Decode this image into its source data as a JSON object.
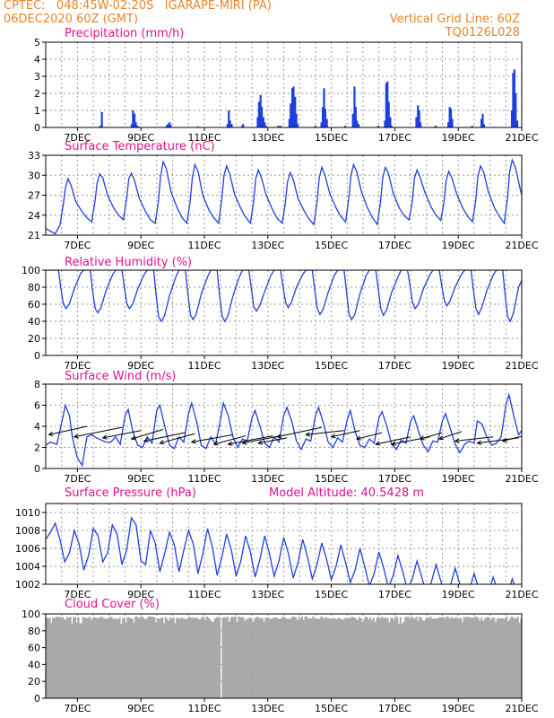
{
  "header": {
    "line1_left": "CPTEC:   048:45W-02:20S   IGARAPE-MIRI (PA)",
    "line1_right": "Vertical Grid Line: 60Z",
    "line2_left": "06DEC2020 60Z (GMT)",
    "line2_right": "TQ0126L028"
  },
  "colors": {
    "series": "#1f3fe0",
    "bars": "#1f3fe0",
    "cloud": "#a9a9a9",
    "title": "#e0118e",
    "header": "#e8852a"
  },
  "x_axis": {
    "unit": "days since 06DEC2020 00Z",
    "range": [
      0,
      15
    ],
    "tick_positions": [
      1,
      3,
      5,
      7,
      9,
      11,
      13,
      15
    ],
    "tick_labels": [
      "7DEC",
      "9DEC",
      "11DEC",
      "13DEC",
      "15DEC",
      "17DEC",
      "19DEC",
      "21DEC"
    ],
    "grid_every": 0.5
  },
  "chart_data": [
    {
      "id": "precip",
      "type": "bar",
      "title": "Precipitation (mm/h)",
      "ylim": [
        0,
        5
      ],
      "yticks": [
        0,
        1,
        2,
        3,
        4,
        5
      ],
      "bars": [
        [
          1.72,
          0.1
        ],
        [
          1.77,
          0.9
        ],
        [
          2.71,
          0.2
        ],
        [
          2.75,
          1.0
        ],
        [
          2.8,
          0.8
        ],
        [
          2.84,
          0.3
        ],
        [
          2.89,
          0.1
        ],
        [
          2.93,
          0.05
        ],
        [
          3.81,
          0.1
        ],
        [
          3.85,
          0.2
        ],
        [
          3.9,
          0.3
        ],
        [
          3.94,
          0.15
        ],
        [
          4.8,
          0.05
        ],
        [
          5.73,
          0.2
        ],
        [
          5.77,
          1.0
        ],
        [
          5.81,
          0.4
        ],
        [
          5.86,
          0.2
        ],
        [
          6.19,
          0.1
        ],
        [
          6.22,
          0.2
        ],
        [
          6.68,
          0.6
        ],
        [
          6.72,
          1.5
        ],
        [
          6.77,
          1.9
        ],
        [
          6.81,
          1.2
        ],
        [
          6.86,
          0.6
        ],
        [
          6.9,
          0.3
        ],
        [
          6.94,
          0.1
        ],
        [
          7.33,
          0.1
        ],
        [
          7.4,
          0.1
        ],
        [
          7.68,
          0.5
        ],
        [
          7.72,
          1.4
        ],
        [
          7.77,
          2.3
        ],
        [
          7.81,
          2.4
        ],
        [
          7.86,
          1.8
        ],
        [
          7.9,
          0.8
        ],
        [
          7.94,
          0.2
        ],
        [
          8.5,
          0.1
        ],
        [
          8.69,
          0.3
        ],
        [
          8.73,
          1.2
        ],
        [
          8.77,
          2.3
        ],
        [
          8.81,
          1.1
        ],
        [
          8.86,
          0.5
        ],
        [
          9.44,
          0.1
        ],
        [
          9.68,
          0.8
        ],
        [
          9.73,
          2.4
        ],
        [
          9.77,
          1.2
        ],
        [
          9.81,
          0.4
        ],
        [
          9.86,
          0.2
        ],
        [
          10.48,
          0.1
        ],
        [
          10.69,
          0.4
        ],
        [
          10.73,
          2.6
        ],
        [
          10.77,
          2.7
        ],
        [
          10.81,
          1.5
        ],
        [
          10.86,
          0.6
        ],
        [
          10.9,
          0.1
        ],
        [
          11.68,
          0.6
        ],
        [
          11.73,
          1.3
        ],
        [
          11.77,
          1.0
        ],
        [
          11.81,
          0.3
        ],
        [
          12.28,
          0.1
        ],
        [
          12.32,
          0.05
        ],
        [
          12.69,
          0.3
        ],
        [
          12.73,
          1.2
        ],
        [
          12.77,
          1.1
        ],
        [
          12.81,
          0.5
        ],
        [
          13.44,
          0.1
        ],
        [
          13.73,
          0.5
        ],
        [
          13.77,
          0.8
        ],
        [
          13.81,
          0.2
        ],
        [
          14.69,
          1.0
        ],
        [
          14.73,
          3.2
        ],
        [
          14.77,
          3.4
        ],
        [
          14.81,
          2.0
        ],
        [
          14.86,
          0.4
        ]
      ]
    },
    {
      "id": "temp",
      "type": "line",
      "title": "Surface Temperature (nC)",
      "ylim": [
        21,
        33
      ],
      "yticks": [
        21,
        24,
        27,
        30,
        33
      ],
      "x": [
        0,
        0.15,
        0.3,
        0.45,
        0.55,
        0.62,
        0.7,
        0.8,
        0.95,
        1.15,
        1.3,
        1.45,
        1.55,
        1.62,
        1.7,
        1.8,
        1.95,
        2.15,
        2.3,
        2.45,
        2.55,
        2.62,
        2.7,
        2.8,
        2.95,
        3.15,
        3.3,
        3.45,
        3.55,
        3.62,
        3.7,
        3.8,
        3.95,
        4.15,
        4.3,
        4.45,
        4.55,
        4.62,
        4.7,
        4.8,
        4.95,
        5.15,
        5.3,
        5.45,
        5.55,
        5.62,
        5.7,
        5.8,
        5.95,
        6.15,
        6.3,
        6.45,
        6.55,
        6.62,
        6.7,
        6.8,
        6.95,
        7.15,
        7.3,
        7.45,
        7.55,
        7.62,
        7.7,
        7.8,
        7.95,
        8.15,
        8.3,
        8.45,
        8.55,
        8.62,
        8.7,
        8.8,
        8.95,
        9.15,
        9.3,
        9.45,
        9.55,
        9.62,
        9.7,
        9.8,
        9.95,
        10.15,
        10.3,
        10.45,
        10.55,
        10.62,
        10.7,
        10.8,
        10.95,
        11.15,
        11.3,
        11.45,
        11.55,
        11.62,
        11.7,
        11.8,
        11.95,
        12.15,
        12.3,
        12.45,
        12.55,
        12.62,
        12.7,
        12.8,
        12.95,
        13.15,
        13.3,
        13.45,
        13.55,
        13.62,
        13.7,
        13.8,
        13.95,
        14.15,
        14.3,
        14.45,
        14.55,
        14.62,
        14.7,
        14.8,
        14.95,
        15.0
      ],
      "y": [
        22.0,
        21.6,
        21.2,
        22.5,
        25.5,
        28.0,
        29.5,
        28.5,
        26.0,
        24.5,
        23.6,
        23.0,
        26.0,
        28.8,
        30.2,
        29.6,
        27.0,
        25.0,
        24.0,
        23.3,
        26.5,
        29.5,
        30.3,
        29.2,
        26.5,
        24.5,
        23.3,
        22.8,
        26.0,
        29.8,
        32.0,
        31.0,
        27.5,
        25.0,
        23.6,
        22.8,
        26.0,
        29.6,
        31.6,
        30.6,
        27.0,
        24.7,
        23.6,
        22.8,
        26.5,
        30.0,
        31.4,
        30.2,
        27.2,
        25.0,
        23.7,
        22.8,
        26.0,
        29.5,
        30.8,
        29.6,
        27.0,
        24.8,
        23.5,
        22.8,
        25.8,
        29.0,
        30.4,
        29.4,
        26.5,
        24.6,
        23.4,
        22.6,
        26.0,
        29.6,
        31.2,
        30.0,
        27.3,
        25.1,
        23.8,
        23.0,
        26.5,
        30.0,
        31.6,
        30.6,
        27.5,
        25.0,
        23.6,
        22.6,
        26.0,
        29.6,
        31.2,
        30.3,
        27.3,
        25.0,
        23.9,
        23.3,
        26.0,
        29.5,
        30.8,
        29.7,
        27.4,
        25.2,
        24.0,
        23.2,
        26.0,
        29.2,
        30.6,
        29.6,
        27.2,
        25.0,
        23.8,
        23.0,
        26.2,
        29.8,
        31.4,
        30.5,
        27.5,
        25.0,
        23.8,
        22.8,
        26.5,
        30.5,
        32.3,
        31.2,
        28.0,
        27.0
      ]
    },
    {
      "id": "rh",
      "type": "line",
      "title": "Relative Humidity (%)",
      "ylim": [
        0,
        100
      ],
      "yticks": [
        0,
        20,
        40,
        60,
        80,
        100
      ],
      "x": [
        0,
        0.2,
        0.4,
        0.48,
        0.56,
        0.64,
        0.74,
        0.9,
        1.1,
        1.2,
        1.4,
        1.48,
        1.56,
        1.64,
        1.74,
        1.9,
        2.1,
        2.2,
        2.4,
        2.48,
        2.56,
        2.64,
        2.74,
        2.9,
        3.1,
        3.2,
        3.4,
        3.48,
        3.56,
        3.64,
        3.74,
        3.9,
        4.1,
        4.2,
        4.4,
        4.48,
        4.56,
        4.64,
        4.74,
        4.9,
        5.1,
        5.2,
        5.4,
        5.48,
        5.56,
        5.64,
        5.74,
        5.9,
        6.1,
        6.2,
        6.4,
        6.48,
        6.56,
        6.64,
        6.74,
        6.9,
        7.1,
        7.2,
        7.4,
        7.48,
        7.56,
        7.64,
        7.74,
        7.9,
        8.1,
        8.2,
        8.4,
        8.48,
        8.56,
        8.64,
        8.74,
        8.9,
        9.1,
        9.2,
        9.4,
        9.48,
        9.56,
        9.64,
        9.74,
        9.9,
        10.1,
        10.2,
        10.4,
        10.48,
        10.56,
        10.64,
        10.74,
        10.9,
        11.1,
        11.2,
        11.4,
        11.48,
        11.56,
        11.64,
        11.74,
        11.9,
        12.1,
        12.2,
        12.4,
        12.48,
        12.56,
        12.64,
        12.74,
        12.9,
        13.1,
        13.2,
        13.4,
        13.48,
        13.56,
        13.64,
        13.74,
        13.9,
        14.1,
        14.2,
        14.4,
        14.48,
        14.56,
        14.64,
        14.74,
        14.9,
        15.0
      ],
      "y": [
        100,
        100,
        100,
        78,
        60,
        55,
        60,
        78,
        96,
        100,
        100,
        75,
        55,
        50,
        56,
        76,
        94,
        100,
        100,
        80,
        60,
        55,
        60,
        78,
        95,
        100,
        100,
        70,
        45,
        40,
        46,
        70,
        92,
        100,
        100,
        72,
        48,
        42,
        48,
        72,
        92,
        100,
        100,
        70,
        46,
        40,
        46,
        70,
        92,
        100,
        100,
        78,
        57,
        52,
        58,
        75,
        94,
        100,
        100,
        80,
        62,
        56,
        62,
        80,
        95,
        100,
        100,
        76,
        55,
        48,
        54,
        74,
        94,
        100,
        100,
        74,
        48,
        42,
        48,
        72,
        94,
        100,
        100,
        78,
        55,
        47,
        53,
        74,
        92,
        100,
        100,
        82,
        62,
        55,
        60,
        78,
        94,
        100,
        100,
        82,
        65,
        58,
        64,
        80,
        95,
        100,
        100,
        76,
        55,
        48,
        56,
        76,
        94,
        100,
        100,
        70,
        45,
        40,
        50,
        80,
        88
      ]
    },
    {
      "id": "wind",
      "type": "line",
      "title": "Surface Wind (m/s)",
      "ylim": [
        0,
        8
      ],
      "yticks": [
        0,
        2,
        4,
        6,
        8
      ],
      "x": [
        0,
        0.15,
        0.35,
        0.55,
        0.62,
        0.75,
        0.85,
        1.0,
        1.15,
        1.3,
        1.45,
        1.6,
        1.75,
        1.9,
        2.05,
        2.2,
        2.35,
        2.5,
        2.6,
        2.75,
        2.9,
        3.05,
        3.2,
        3.35,
        3.5,
        3.6,
        3.75,
        3.9,
        4.05,
        4.2,
        4.35,
        4.5,
        4.6,
        4.75,
        4.9,
        5.05,
        5.2,
        5.35,
        5.5,
        5.6,
        5.75,
        5.9,
        6.05,
        6.2,
        6.35,
        6.5,
        6.6,
        6.75,
        6.9,
        7.05,
        7.2,
        7.35,
        7.5,
        7.6,
        7.75,
        7.9,
        8.05,
        8.2,
        8.35,
        8.5,
        8.6,
        8.75,
        8.9,
        9.05,
        9.2,
        9.35,
        9.5,
        9.6,
        9.75,
        9.9,
        10.05,
        10.2,
        10.35,
        10.5,
        10.6,
        10.75,
        10.9,
        11.05,
        11.2,
        11.35,
        11.5,
        11.6,
        11.75,
        11.9,
        12.05,
        12.2,
        12.35,
        12.5,
        12.6,
        12.75,
        12.9,
        13.05,
        13.2,
        13.35,
        13.5,
        13.6,
        13.75,
        13.9,
        14.05,
        14.2,
        14.35,
        14.5,
        14.6,
        14.75,
        14.9,
        15.0
      ],
      "y": [
        2.2,
        2.5,
        2.3,
        5.0,
        6.0,
        5.0,
        2.8,
        1.0,
        0.3,
        3.0,
        3.2,
        2.9,
        2.7,
        2.5,
        2.5,
        3.0,
        2.3,
        5.0,
        5.6,
        3.5,
        2.2,
        2.0,
        3.0,
        2.4,
        5.5,
        6.0,
        4.0,
        2.2,
        1.9,
        3.0,
        2.5,
        5.2,
        6.2,
        4.5,
        2.2,
        1.9,
        3.0,
        2.3,
        4.5,
        6.2,
        5.0,
        3.0,
        2.0,
        2.8,
        2.6,
        4.8,
        5.5,
        4.0,
        2.4,
        2.0,
        3.0,
        2.5,
        5.0,
        5.8,
        4.5,
        2.6,
        1.8,
        2.8,
        2.6,
        5.0,
        5.8,
        4.3,
        2.5,
        2.0,
        2.9,
        2.5,
        4.6,
        5.5,
        3.5,
        2.2,
        2.0,
        2.8,
        2.4,
        4.8,
        5.4,
        4.0,
        2.3,
        1.8,
        2.7,
        2.4,
        4.5,
        5.0,
        3.5,
        2.2,
        1.6,
        2.6,
        2.5,
        4.5,
        5.2,
        3.8,
        2.3,
        1.5,
        2.3,
        2.6,
        2.4,
        4.5,
        4.2,
        3.0,
        2.2,
        2.4,
        3.0,
        6.0,
        7.0,
        5.0,
        3.2,
        3.6
      ]
    },
    {
      "id": "pressure",
      "type": "line",
      "title": "Surface Pressure (hPa)",
      "subtitle": "Model Altitude: 40.5428 m",
      "ylim": [
        1002,
        1011
      ],
      "yticks": [
        1002,
        1004,
        1006,
        1008,
        1010
      ],
      "x": [
        0,
        0.15,
        0.3,
        0.45,
        0.6,
        0.75,
        0.9,
        1.05,
        1.2,
        1.35,
        1.5,
        1.65,
        1.8,
        1.95,
        2.1,
        2.25,
        2.4,
        2.55,
        2.7,
        2.85,
        3.0,
        3.15,
        3.3,
        3.45,
        3.6,
        3.75,
        3.9,
        4.05,
        4.2,
        4.35,
        4.5,
        4.65,
        4.8,
        4.95,
        5.1,
        5.25,
        5.4,
        5.55,
        5.7,
        5.85,
        6.0,
        6.15,
        6.3,
        6.45,
        6.6,
        6.75,
        6.9,
        7.05,
        7.2,
        7.35,
        7.5,
        7.65,
        7.8,
        7.95,
        8.1,
        8.25,
        8.4,
        8.55,
        8.7,
        8.85,
        9.0,
        9.15,
        9.3,
        9.45,
        9.6,
        9.75,
        9.9,
        10.05,
        10.2,
        10.35,
        10.5,
        10.65,
        10.8,
        10.95,
        11.1,
        11.25,
        11.4,
        11.55,
        11.7,
        11.85,
        12.0,
        12.15,
        12.3,
        12.45,
        12.6,
        12.75,
        12.9,
        13.05,
        13.2,
        13.35,
        13.5,
        13.65,
        13.8,
        13.95,
        14.1,
        14.25,
        14.4,
        14.55,
        14.7,
        14.85,
        15.0
      ],
      "y": [
        1007.0,
        1007.8,
        1008.8,
        1007.0,
        1004.5,
        1005.5,
        1008.0,
        1006.5,
        1003.6,
        1005.2,
        1008.2,
        1007.4,
        1004.5,
        1005.5,
        1008.6,
        1007.6,
        1004.2,
        1005.8,
        1009.4,
        1008.6,
        1004.6,
        1004.2,
        1008.0,
        1006.6,
        1003.4,
        1005.5,
        1007.8,
        1006.4,
        1003.4,
        1005.8,
        1008.0,
        1006.5,
        1003.2,
        1005.4,
        1008.2,
        1006.2,
        1003.0,
        1005.0,
        1007.6,
        1005.8,
        1002.9,
        1004.6,
        1007.4,
        1005.6,
        1002.8,
        1004.8,
        1007.4,
        1005.4,
        1002.9,
        1004.6,
        1007.2,
        1005.4,
        1002.7,
        1004.4,
        1007.0,
        1005.0,
        1002.6,
        1004.2,
        1006.6,
        1004.8,
        1002.5,
        1004.0,
        1006.4,
        1004.4,
        1002.2,
        1003.6,
        1006.0,
        1004.0,
        1001.8,
        1003.2,
        1005.6,
        1003.8,
        1001.6,
        1003.0,
        1005.2,
        1003.4,
        1001.4,
        1002.6,
        1004.6,
        1002.8,
        1000.9,
        1002.2,
        1004.2,
        1002.4,
        1000.5,
        1001.8,
        1003.8,
        1002.0,
        1000.2,
        1001.4,
        1003.2,
        1001.5,
        999.8,
        1001.0,
        1002.8,
        1001.2,
        999.6,
        1000.8,
        1002.6,
        1001.0,
        1000.0
      ]
    },
    {
      "id": "cloud",
      "type": "bar",
      "title": "Cloud Cover (%)",
      "ylim": [
        0,
        100
      ],
      "yticks": [
        0,
        20,
        40,
        60,
        80,
        100
      ],
      "base_cover": 97,
      "dip_min": 88,
      "min_cover_at": [
        [
          5.5,
          0
        ]
      ]
    }
  ],
  "wind_vectors": {
    "note": "arrow head points to the direction the wind blows towards",
    "x": [
      0.1,
      0.9,
      1.8,
      2.7,
      3.1,
      3.6,
      4.6,
      5.3,
      5.75,
      6.2,
      6.7,
      7.3,
      8.2,
      9.0,
      9.8,
      10.4,
      10.9,
      11.8,
      12.4,
      12.9,
      13.6,
      14.4
    ],
    "y": [
      3.2,
      3.0,
      2.9,
      2.8,
      2.6,
      2.4,
      2.5,
      2.3,
      2.3,
      2.4,
      2.4,
      3.0,
      3.2,
      3.0,
      2.8,
      2.3,
      2.3,
      2.8,
      2.8,
      2.6,
      2.4,
      2.6
    ],
    "dx": [
      -1.2,
      -1.5,
      -1.2,
      -1.0,
      -1.3,
      -1.1,
      -1.3,
      -1.0,
      -1.4,
      -1.2,
      -0.9,
      -1.4,
      -1.2,
      -0.9,
      -0.8,
      -1.1,
      -1.2,
      -0.7,
      -0.7,
      -1.2,
      -1.3,
      -1.2
    ],
    "dy": [
      0.8,
      0.9,
      0.7,
      0.9,
      0.8,
      0.9,
      0.7,
      0.8,
      0.8,
      0.7,
      0.5,
      0.9,
      0.4,
      0.6,
      0.6,
      0.7,
      0.7,
      0.6,
      0.7,
      0.4,
      0.5,
      0.9
    ]
  }
}
